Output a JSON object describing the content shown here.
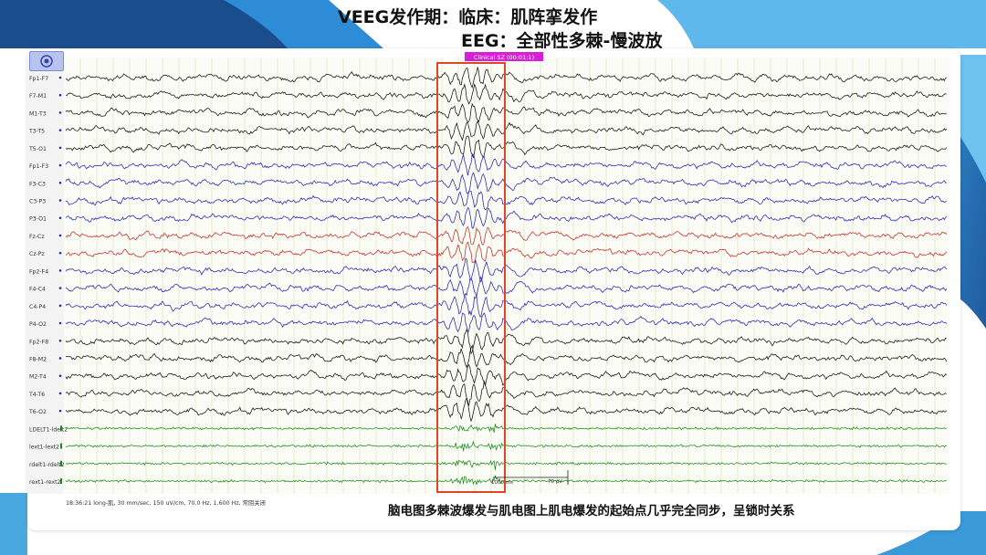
{
  "slide": {
    "title_line1": "VEEG发作期：临床：肌阵挛发作",
    "title_line2": "EEG：全部性多棘-慢波放",
    "caption": "脑电图多棘波爆发与肌电图上肌电爆发的起始点几乎完全同步，呈锁时关系"
  },
  "eeg": {
    "event_marker": "Clinical SZ (00:01:1)",
    "status_text": "18:36:21 long-肌, 30 mm/sec, 150 uV/cm, 70.0 Hz, 1.600 Hz, 常阻关闭",
    "time_scale": "1000 ms",
    "amp_scale": "70 μV",
    "settings_icon": "target-icon",
    "channels": [
      {
        "label": "Fp1-F7",
        "color": "#111111",
        "type": "eeg"
      },
      {
        "label": "F7-M1",
        "color": "#111111",
        "type": "eeg"
      },
      {
        "label": "M1-T3",
        "color": "#111111",
        "type": "eeg"
      },
      {
        "label": "T3-T5",
        "color": "#111111",
        "type": "eeg"
      },
      {
        "label": "T5-O1",
        "color": "#111111",
        "type": "eeg"
      },
      {
        "label": "Fp1-F3",
        "color": "#2323b8",
        "type": "eeg"
      },
      {
        "label": "F3-C3",
        "color": "#2323b8",
        "type": "eeg"
      },
      {
        "label": "C3-P3",
        "color": "#2323b8",
        "type": "eeg"
      },
      {
        "label": "P3-O1",
        "color": "#2323b8",
        "type": "eeg"
      },
      {
        "label": "Fz-Cz",
        "color": "#c62828",
        "type": "eeg"
      },
      {
        "label": "Cz-Pz",
        "color": "#c62828",
        "type": "eeg"
      },
      {
        "label": "Fp2-F4",
        "color": "#2323b8",
        "type": "eeg"
      },
      {
        "label": "F4-C4",
        "color": "#2323b8",
        "type": "eeg"
      },
      {
        "label": "C4-P4",
        "color": "#2323b8",
        "type": "eeg"
      },
      {
        "label": "P4-O2",
        "color": "#2323b8",
        "type": "eeg"
      },
      {
        "label": "Fp2-F8",
        "color": "#111111",
        "type": "eeg"
      },
      {
        "label": "F8-M2",
        "color": "#111111",
        "type": "eeg"
      },
      {
        "label": "M2-T4",
        "color": "#111111",
        "type": "eeg"
      },
      {
        "label": "T4-T6",
        "color": "#111111",
        "type": "eeg"
      },
      {
        "label": "T6-O2",
        "color": "#111111",
        "type": "eeg"
      },
      {
        "label": "LDELT1-ldelt2",
        "color": "#1a8a1a",
        "type": "emg"
      },
      {
        "label": "lext1-lext2",
        "color": "#1a8a1a",
        "type": "emg"
      },
      {
        "label": "rdelt1-rdelt2",
        "color": "#1a8a1a",
        "type": "emg"
      },
      {
        "label": "rext1-rext2",
        "color": "#1a8a1a",
        "type": "emg"
      }
    ],
    "colors": {
      "highlight_box": "#e0452a",
      "marker": "#d61fd6",
      "grid": "#e3e6c4",
      "channel_bg": "#fbfcf5"
    }
  }
}
